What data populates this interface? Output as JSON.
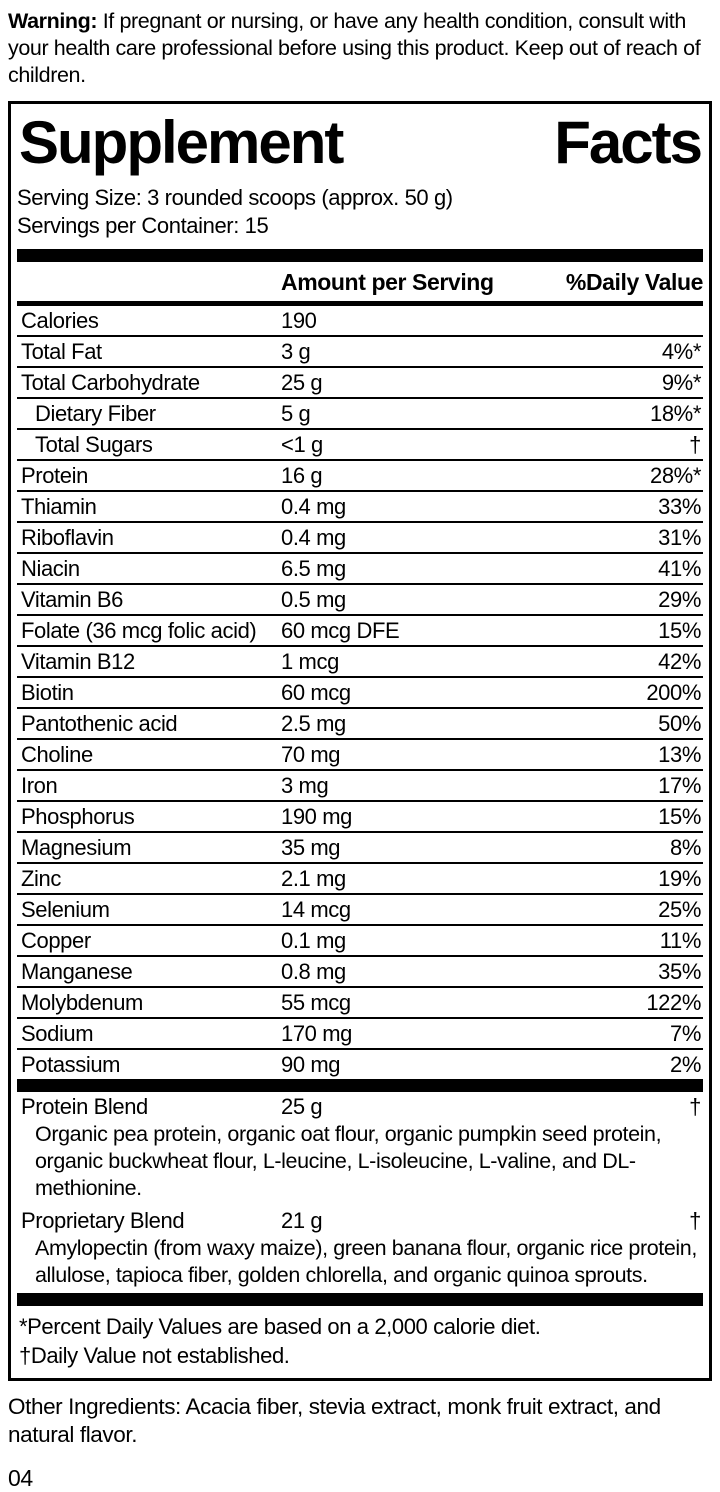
{
  "warning": {
    "label": "Warning:",
    "text": "If pregnant or nursing, or have any health condition, consult with your health care professional before using this product. Keep out of reach of children."
  },
  "panel": {
    "title": {
      "word1": "Supplement",
      "word2": "Facts"
    },
    "serving_size": "Serving Size: 3 rounded scoops (approx. 50 g)",
    "servings_per_container": "Servings per Container: 15",
    "columns": {
      "amount": "Amount per Serving",
      "daily_value": "%Daily Value"
    },
    "rows": [
      {
        "name": "Calories",
        "amount": "190",
        "dv": "",
        "indent": false
      },
      {
        "name": "Total Fat",
        "amount": "3 g",
        "dv": "4%*",
        "indent": false
      },
      {
        "name": "Total Carbohydrate",
        "amount": "25 g",
        "dv": "9%*",
        "indent": false
      },
      {
        "name": "Dietary Fiber",
        "amount": "5 g",
        "dv": "18%*",
        "indent": true
      },
      {
        "name": "Total Sugars",
        "amount": "<1 g",
        "dv": "†",
        "indent": true
      },
      {
        "name": "Protein",
        "amount": "16 g",
        "dv": "28%*",
        "indent": false
      },
      {
        "name": "Thiamin",
        "amount": "0.4 mg",
        "dv": "33%",
        "indent": false
      },
      {
        "name": "Riboflavin",
        "amount": "0.4 mg",
        "dv": "31%",
        "indent": false
      },
      {
        "name": "Niacin",
        "amount": "6.5 mg",
        "dv": "41%",
        "indent": false
      },
      {
        "name": "Vitamin B6",
        "amount": "0.5 mg",
        "dv": "29%",
        "indent": false
      },
      {
        "name": "Folate (36 mcg folic acid)",
        "amount": "60 mcg DFE",
        "dv": "15%",
        "indent": false
      },
      {
        "name": "Vitamin B12",
        "amount": "1 mcg",
        "dv": "42%",
        "indent": false
      },
      {
        "name": "Biotin",
        "amount": "60 mcg",
        "dv": "200%",
        "indent": false
      },
      {
        "name": "Pantothenic acid",
        "amount": "2.5 mg",
        "dv": "50%",
        "indent": false
      },
      {
        "name": "Choline",
        "amount": "70 mg",
        "dv": "13%",
        "indent": false
      },
      {
        "name": "Iron",
        "amount": "3 mg",
        "dv": "17%",
        "indent": false
      },
      {
        "name": "Phosphorus",
        "amount": "190 mg",
        "dv": "15%",
        "indent": false
      },
      {
        "name": "Magnesium",
        "amount": "35 mg",
        "dv": "8%",
        "indent": false
      },
      {
        "name": "Zinc",
        "amount": "2.1 mg",
        "dv": "19%",
        "indent": false
      },
      {
        "name": "Selenium",
        "amount": "14 mcg",
        "dv": "25%",
        "indent": false
      },
      {
        "name": "Copper",
        "amount": "0.1 mg",
        "dv": "11%",
        "indent": false
      },
      {
        "name": "Manganese",
        "amount": "0.8 mg",
        "dv": "35%",
        "indent": false
      },
      {
        "name": "Molybdenum",
        "amount": "55 mcg",
        "dv": "122%",
        "indent": false
      },
      {
        "name": "Sodium",
        "amount": "170 mg",
        "dv": "7%",
        "indent": false
      },
      {
        "name": "Potassium",
        "amount": "90 mg",
        "dv": "2%",
        "indent": false
      }
    ],
    "blends": [
      {
        "name": "Protein Blend",
        "amount": "25 g",
        "dv": "†",
        "description": "Organic pea protein, organic oat flour, organic pumpkin seed protein, organic buckwheat flour, L-leucine, L-isoleucine, L-valine, and DL-methionine."
      },
      {
        "name": "Proprietary Blend",
        "amount": "21 g",
        "dv": "†",
        "description": "Amylopectin (from waxy maize), green banana flour, organic rice protein, allulose, tapioca fiber, golden chlorella, and organic quinoa sprouts."
      }
    ],
    "footnotes": [
      "*Percent Daily Values are based on a 2,000 calorie diet.",
      "†Daily Value not established."
    ]
  },
  "other_ingredients": "Other Ingredients: Acacia fiber, stevia extract, monk fruit extract, and natural flavor.",
  "page_number": "04",
  "colors": {
    "text": "#000000",
    "background": "#ffffff",
    "border": "#000000"
  }
}
